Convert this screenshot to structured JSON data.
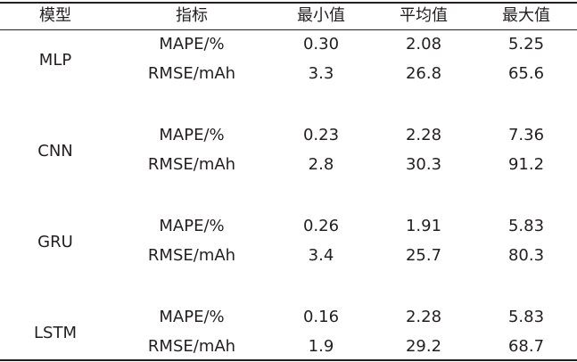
{
  "table": {
    "columns": [
      "模型",
      "指标",
      "最小值",
      "平均值",
      "最大值"
    ],
    "groups": [
      {
        "model": "MLP",
        "rows": [
          [
            "MAPE/%",
            "0.30",
            "2.08",
            "5.25"
          ],
          [
            "RMSE/mAh",
            "3.3",
            "26.8",
            "65.6"
          ]
        ]
      },
      {
        "model": "CNN",
        "rows": [
          [
            "MAPE/%",
            "0.23",
            "2.28",
            "7.36"
          ],
          [
            "RMSE/mAh",
            "2.8",
            "30.3",
            "91.2"
          ]
        ]
      },
      {
        "model": "GRU",
        "rows": [
          [
            "MAPE/%",
            "0.26",
            "1.91",
            "5.83"
          ],
          [
            "RMSE/mAh",
            "3.4",
            "25.7",
            "80.3"
          ]
        ]
      },
      {
        "model": "LSTM",
        "rows": [
          [
            "MAPE/%",
            "0.16",
            "2.28",
            "5.83"
          ],
          [
            "RMSE/mAh",
            "1.9",
            "29.2",
            "68.7"
          ]
        ]
      }
    ]
  }
}
